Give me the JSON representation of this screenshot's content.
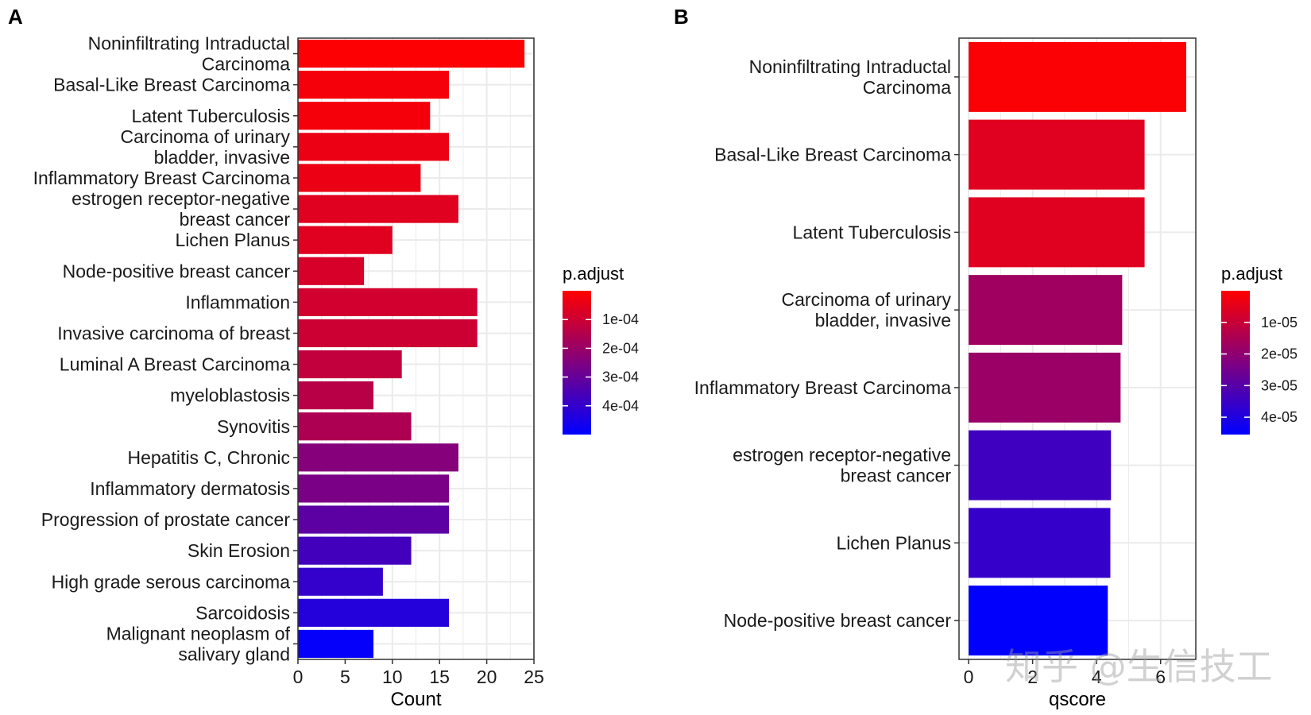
{
  "panels": {
    "a": {
      "label": "A"
    },
    "b": {
      "label": "B"
    }
  },
  "watermark": "知乎 @生信技工",
  "colors": {
    "high": "#ff0000",
    "low": "#0000ff",
    "grid": "#ebebeb",
    "panel_border": "#333333"
  },
  "chart_data": [
    {
      "type": "bar",
      "orientation": "horizontal",
      "panel": "A",
      "categories": [
        "Noninfiltrating Intraductal\nCarcinoma",
        "Basal-Like Breast Carcinoma",
        "Latent Tuberculosis",
        "Carcinoma of urinary\nbladder, invasive",
        "Inflammatory Breast Carcinoma",
        "estrogen receptor-negative\nbreast cancer",
        "Lichen Planus",
        "Node-positive breast cancer",
        "Inflammation",
        "Invasive carcinoma of breast",
        "Luminal A Breast Carcinoma",
        "myeloblastosis",
        "Synovitis",
        "Hepatitis C, Chronic",
        "Inflammatory dermatosis",
        "Progression of prostate cancer",
        "Skin Erosion",
        "High grade serous carcinoma",
        "Sarcoidosis",
        "Malignant neoplasm of\nsalivary gland"
      ],
      "values": [
        24,
        16,
        14,
        16,
        13,
        17,
        10,
        7,
        19,
        19,
        11,
        8,
        12,
        17,
        16,
        16,
        12,
        9,
        16,
        8
      ],
      "color_values": [
        5e-06,
        2e-05,
        2e-05,
        4e-05,
        4e-05,
        6e-05,
        6e-05,
        8e-05,
        9e-05,
        0.0001,
        0.00012,
        0.00014,
        0.00016,
        0.00024,
        0.00026,
        0.00032,
        0.00037,
        0.0004,
        0.00043,
        0.00049
      ],
      "xlabel": "Count",
      "ylabel": "",
      "xlim": [
        0,
        25
      ],
      "xticks": [
        0,
        5,
        10,
        15,
        20,
        25
      ],
      "legend": {
        "title": "p.adjust",
        "position": "right",
        "range": [
          0,
          0.0005
        ],
        "ticks": [
          0.0001,
          0.0002,
          0.0003,
          0.0004
        ],
        "tick_labels": [
          "1e-04",
          "2e-04",
          "3e-04",
          "4e-04"
        ]
      },
      "grid": true
    },
    {
      "type": "bar",
      "orientation": "horizontal",
      "panel": "B",
      "categories": [
        "Noninfiltrating Intraductal\nCarcinoma",
        "Basal-Like Breast Carcinoma",
        "Latent Tuberculosis",
        "Carcinoma of urinary\nbladder, invasive",
        "Inflammatory Breast Carcinoma",
        "estrogen receptor-negative\nbreast cancer",
        "Lichen Planus",
        "Node-positive breast cancer"
      ],
      "values": [
        6.8,
        5.5,
        5.5,
        4.8,
        4.75,
        4.45,
        4.43,
        4.35
      ],
      "color_values": [
        8e-07,
        5.5e-06,
        5.5e-06,
        1.7e-05,
        1.8e-05,
        3.4e-05,
        3.6e-05,
        4.52e-05
      ],
      "xlabel": "qscore",
      "ylabel": "",
      "xlim": [
        -0.3,
        7.1
      ],
      "xticks": [
        0,
        2,
        4,
        6
      ],
      "legend": {
        "title": "p.adjust",
        "position": "right",
        "range": [
          0,
          4.55e-05
        ],
        "ticks": [
          1e-05,
          2e-05,
          3e-05,
          4e-05
        ],
        "tick_labels": [
          "1e-05",
          "2e-05",
          "3e-05",
          "4e-05"
        ]
      },
      "grid": true
    }
  ]
}
